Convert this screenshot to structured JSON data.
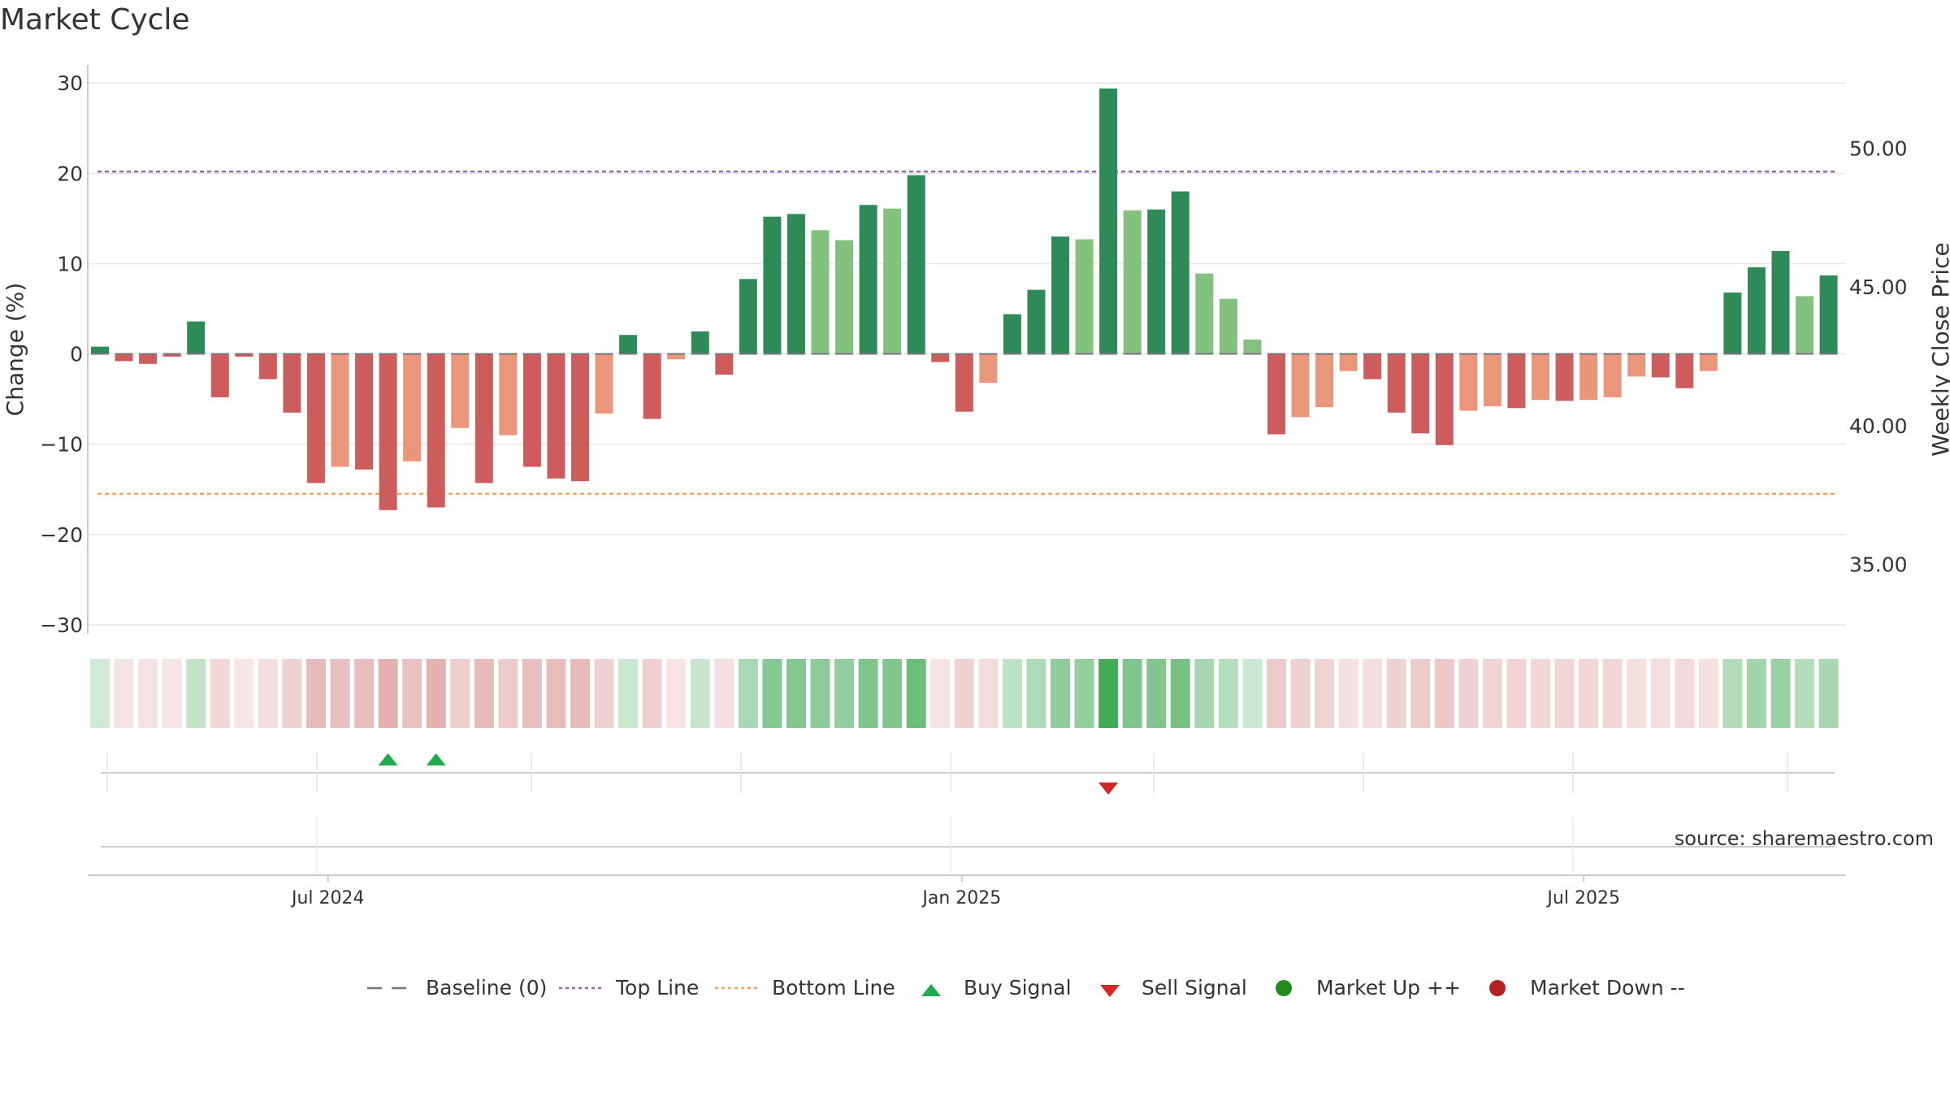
{
  "colors": {
    "strong_up": "#2e8b57",
    "mild_up": "#82c17e",
    "strong_down": "#cd5c5c",
    "mild_down": "#e9967a",
    "top_line": "#9467bd",
    "bottom_line": "#f4a460",
    "baseline": "#777777",
    "buy": "#1faa4f",
    "sell": "#d62728",
    "market_up": "#228b22",
    "market_down": "#b22222",
    "grid": "#e8e8e8",
    "axis": "#cccccc",
    "source": "#999999"
  },
  "chart_data": {
    "type": "bar",
    "title": "Market Cycle",
    "ylabel": "Change (%)",
    "ylabel_right": "Weekly Close Price",
    "ylim": [
      -31,
      32
    ],
    "yticks": [
      30,
      20,
      10,
      0,
      -10,
      -20,
      -30
    ],
    "ytick_labels": [
      "30",
      "20",
      "10",
      "0",
      "−10",
      "−20",
      "−30"
    ],
    "ylim_right": [
      32.5,
      53
    ],
    "yticks_right": [
      50,
      45,
      40,
      35
    ],
    "ytick_right_labels": [
      "50.00",
      "45.00",
      "40.00",
      "35.00"
    ],
    "x_labels": [
      "Jul 2024",
      "Jan 2025",
      "Jul 2025"
    ],
    "x_label_index": [
      9.5,
      35.9,
      61.8
    ],
    "top_line": 20.2,
    "bottom_line": -15.5,
    "values": [
      0.8,
      -0.8,
      -1.1,
      -0.3,
      3.6,
      -4.8,
      -0.3,
      -2.8,
      -6.5,
      -14.3,
      -12.5,
      -12.8,
      -17.3,
      -11.9,
      -17.0,
      -8.2,
      -14.3,
      -9.0,
      -12.5,
      -13.8,
      -14.1,
      -6.6,
      2.1,
      -7.2,
      -0.6,
      2.5,
      -2.3,
      8.3,
      15.2,
      15.5,
      13.7,
      12.6,
      16.5,
      16.1,
      19.8,
      -0.9,
      -6.4,
      -3.2,
      4.4,
      7.1,
      13.0,
      12.7,
      29.4,
      15.9,
      16.0,
      18.0,
      8.9,
      6.1,
      1.6,
      -8.9,
      -7.0,
      -5.9,
      -1.9,
      -2.8,
      -6.5,
      -8.8,
      -10.1,
      -6.3,
      -5.8,
      -6.0,
      -5.1,
      -5.2,
      -5.1,
      -4.8,
      -2.5,
      -2.6,
      -3.8,
      -1.9,
      6.8,
      9.6,
      11.4,
      6.4,
      8.7
    ],
    "strong": [
      1,
      1,
      1,
      1,
      1,
      1,
      1,
      1,
      1,
      1,
      0,
      1,
      1,
      0,
      1,
      0,
      1,
      0,
      1,
      1,
      1,
      0,
      1,
      1,
      0,
      1,
      1,
      1,
      1,
      1,
      0,
      0,
      1,
      0,
      1,
      1,
      1,
      0,
      1,
      1,
      1,
      0,
      1,
      0,
      1,
      1,
      0,
      0,
      0,
      1,
      0,
      0,
      0,
      1,
      1,
      1,
      1,
      0,
      0,
      1,
      0,
      1,
      0,
      0,
      0,
      1,
      1,
      0,
      1,
      1,
      1,
      0,
      1
    ],
    "buy_signals": [
      12,
      14
    ],
    "sell_signals": [
      42
    ],
    "source": "source: sharemaestro.com",
    "legend": [
      "Baseline (0)",
      "Top Line",
      "Bottom Line",
      "Buy Signal",
      "Sell Signal",
      "Market Up ++",
      "Market Down --"
    ]
  }
}
